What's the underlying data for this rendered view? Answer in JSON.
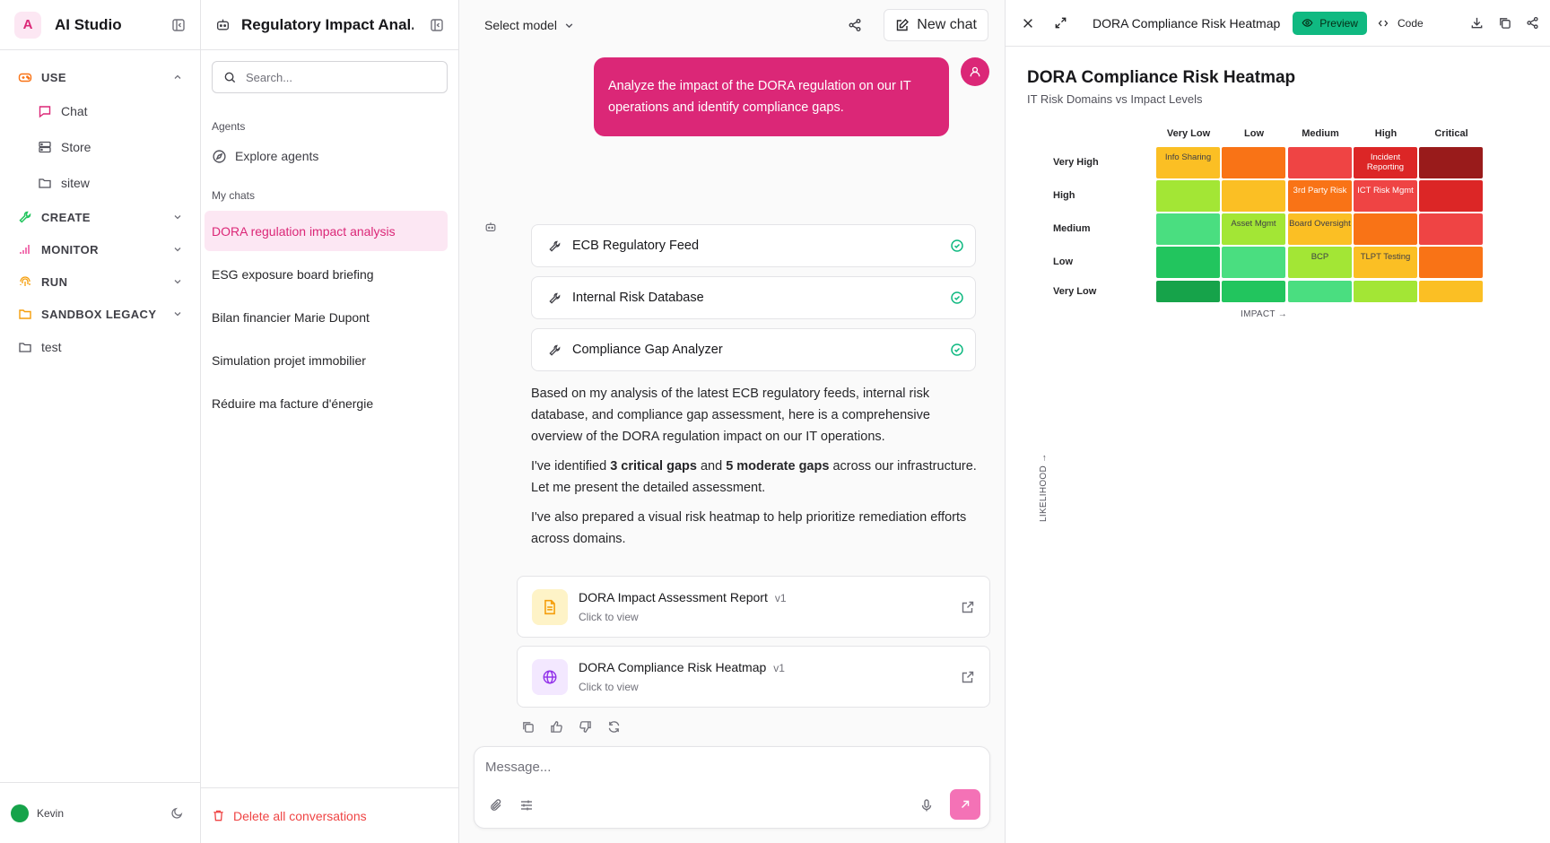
{
  "sidebar": {
    "logo_letter": "A",
    "app_title": "AI Studio",
    "sections": [
      {
        "label": "USE",
        "icon": "gamepad-icon"
      },
      {
        "label": "CREATE",
        "icon": "wrench-icon"
      },
      {
        "label": "MONITOR",
        "icon": "bars-icon"
      },
      {
        "label": "RUN",
        "icon": "fingerprint-icon"
      },
      {
        "label": "SANDBOX LEGACY",
        "icon": "folder-icon"
      }
    ],
    "use_items": [
      {
        "label": "Chat"
      },
      {
        "label": "Store"
      },
      {
        "label": "sitew"
      }
    ],
    "folder_test": "test",
    "user_name": "Kevin"
  },
  "chats_panel": {
    "title": "Regulatory Impact Anal...",
    "search_placeholder": "Search...",
    "agents_label": "Agents",
    "explore_label": "Explore agents",
    "my_chats_label": "My chats",
    "chats": [
      "DORA regulation impact analysis",
      "ESG exposure board briefing",
      "Bilan financier Marie Dupont",
      "Simulation projet immobilier",
      "Réduire ma facture d'énergie"
    ],
    "delete_label": "Delete all conversations"
  },
  "chat": {
    "model_label": "Select model",
    "new_chat_label": "New chat",
    "user_message": "Analyze the impact of the DORA regulation on our IT operations and identify compliance gaps.",
    "tools": [
      "ECB Regulatory Feed",
      "Internal Risk Database",
      "Compliance Gap Analyzer"
    ],
    "response": {
      "p1": "Based on my analysis of the latest ECB regulatory feeds, internal risk database, and compliance gap assessment, here is a comprehensive overview of the DORA regulation impact on our IT operations.",
      "p2_a": "I've identified ",
      "p2_b": "3 critical gaps",
      "p2_c": " and ",
      "p2_d": "5 moderate gaps",
      "p2_e": " across our infrastructure. Let me present the detailed assessment.",
      "p3": "I've also prepared a visual risk heatmap to help prioritize remediation efforts across domains."
    },
    "artifacts": [
      {
        "title": "DORA Impact Assessment Report",
        "version": "v1",
        "sub": "Click to view"
      },
      {
        "title": "DORA Compliance Risk Heatmap",
        "version": "v1",
        "sub": "Click to view"
      }
    ],
    "composer_placeholder": "Message..."
  },
  "preview": {
    "header_title": "DORA Compliance Risk Heatmap",
    "preview_label": "Preview",
    "code_label": "Code",
    "heatmap_title": "DORA Compliance Risk Heatmap",
    "heatmap_subtitle": "IT Risk Domains vs Impact Levels",
    "impact_label": "IMPACT →",
    "likelihood_label": "LIKELIHOOD →",
    "columns": [
      "Very Low",
      "Low",
      "Medium",
      "High",
      "Critical"
    ],
    "rows": [
      "Very High",
      "High",
      "Medium",
      "Low",
      "Very Low"
    ],
    "cells": [
      [
        {
          "color": "#fbbf24",
          "text": "Info Sharing",
          "fg": "#3f3f46"
        },
        {
          "color": "#f97316",
          "text": ""
        },
        {
          "color": "#ef4444",
          "text": ""
        },
        {
          "color": "#dc2626",
          "text": "Incident Reporting",
          "fg": "#ffffff"
        },
        {
          "color": "#991b1b",
          "text": ""
        }
      ],
      [
        {
          "color": "#a3e635",
          "text": ""
        },
        {
          "color": "#fbbf24",
          "text": ""
        },
        {
          "color": "#f97316",
          "text": "3rd Party Risk",
          "fg": "#ffffff"
        },
        {
          "color": "#ef4444",
          "text": "ICT Risk Mgmt",
          "fg": "#ffffff"
        },
        {
          "color": "#dc2626",
          "text": ""
        }
      ],
      [
        {
          "color": "#4ade80",
          "text": ""
        },
        {
          "color": "#a3e635",
          "text": "Asset Mgmt",
          "fg": "#3f3f46"
        },
        {
          "color": "#fbbf24",
          "text": "Board Oversight",
          "fg": "#3f3f46"
        },
        {
          "color": "#f97316",
          "text": ""
        },
        {
          "color": "#ef4444",
          "text": ""
        }
      ],
      [
        {
          "color": "#22c55e",
          "text": ""
        },
        {
          "color": "#4ade80",
          "text": ""
        },
        {
          "color": "#a3e635",
          "text": "BCP",
          "fg": "#3f3f46"
        },
        {
          "color": "#fbbf24",
          "text": "TLPT Testing",
          "fg": "#3f3f46"
        },
        {
          "color": "#f97316",
          "text": ""
        }
      ],
      [
        {
          "color": "#16a34a",
          "text": ""
        },
        {
          "color": "#22c55e",
          "text": ""
        },
        {
          "color": "#4ade80",
          "text": ""
        },
        {
          "color": "#a3e635",
          "text": ""
        },
        {
          "color": "#fbbf24",
          "text": ""
        }
      ]
    ]
  },
  "colors": {
    "accent": "#db2777",
    "preview_green": "#10b981",
    "danger": "#ef4444"
  }
}
